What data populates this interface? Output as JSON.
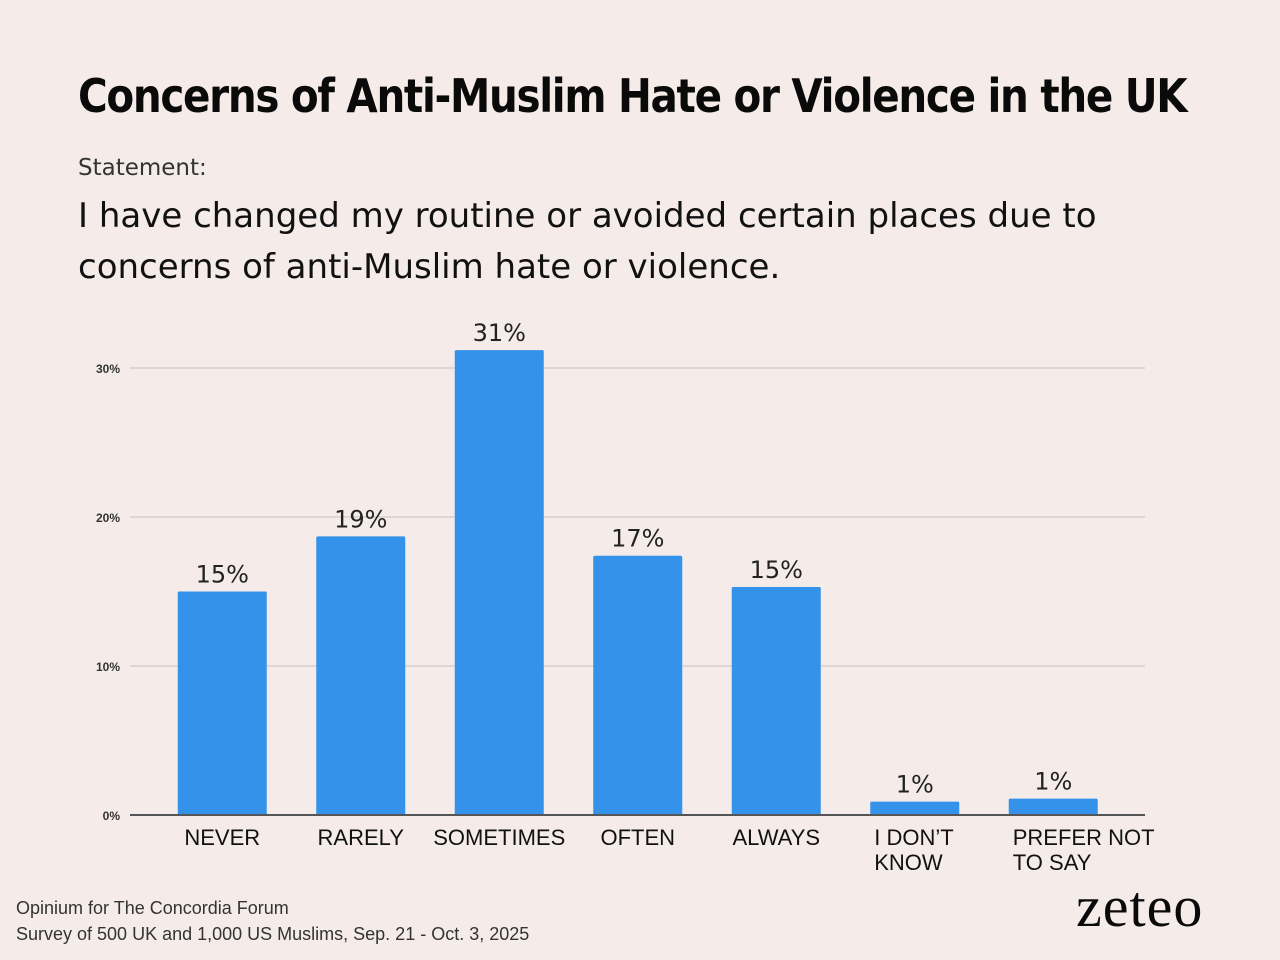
{
  "chart_data": {
    "type": "bar",
    "title": "Concerns of Anti-Muslim Hate or Violence in the UK",
    "statement_label": "Statement:",
    "statement": "I have changed my routine or avoided certain places due to concerns of anti-Muslim hate or violence.",
    "categories": [
      [
        "NEVER"
      ],
      [
        "RARELY"
      ],
      [
        "SOMETIMES"
      ],
      [
        "OFTEN"
      ],
      [
        "ALWAYS"
      ],
      [
        "I DON’T",
        "KNOW"
      ],
      [
        "PREFER NOT",
        "TO SAY"
      ]
    ],
    "values": [
      15,
      18.7,
      31.2,
      17.4,
      15.3,
      0.9,
      1.1
    ],
    "data_labels": [
      "15%",
      "19%",
      "31%",
      "17%",
      "15%",
      "1%",
      "1%"
    ],
    "yticks": [
      0,
      10,
      20,
      30
    ],
    "ytick_labels": [
      "0%",
      "10%",
      "20%",
      "30%"
    ],
    "ylim": [
      0,
      30
    ],
    "grid": true,
    "bar_color": "#3592ea",
    "grid_color": "#d8cfcc",
    "axis_color": "#555555"
  },
  "footer": {
    "source_line1": "Opinium for The Concordia Forum",
    "source_line2": "Survey of 500 UK and 1,000 US Muslims, Sep. 21 - Oct. 3, 2025",
    "brand": "zeteo"
  }
}
